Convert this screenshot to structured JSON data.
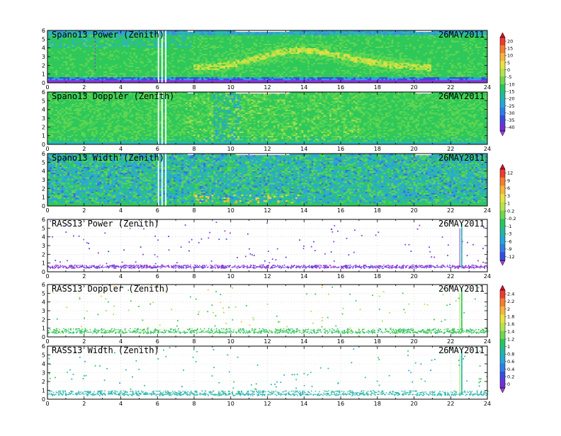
{
  "date_label": "26MAY2011",
  "chart_data": [
    {
      "type": "heatmap",
      "title": "Spano13 Power (Zenith)",
      "date": "26MAY2011",
      "xlim": [
        0,
        24
      ],
      "ylim": [
        0,
        6
      ],
      "xticks": [
        "0",
        "2",
        "4",
        "6",
        "8",
        "10",
        "12",
        "14",
        "16",
        "18",
        "20",
        "22",
        "24"
      ],
      "yticks": [
        "0",
        "1",
        "2",
        "3",
        "4",
        "5",
        "6"
      ],
      "colorbar": "A"
    },
    {
      "type": "heatmap",
      "title": "Spano13 Doppler (Zenith)",
      "date": "26MAY2011",
      "xlim": [
        0,
        24
      ],
      "ylim": [
        0,
        6
      ],
      "xticks": [
        "0",
        "2",
        "4",
        "6",
        "8",
        "10",
        "12",
        "14",
        "16",
        "18",
        "20",
        "22",
        "24"
      ],
      "yticks": [
        "0",
        "1",
        "2",
        "3",
        "4",
        "5",
        "6"
      ],
      "colorbar": "A"
    },
    {
      "type": "heatmap",
      "title": "Spano13 Width (Zenith)",
      "date": "26MAY2011",
      "xlim": [
        0,
        24
      ],
      "ylim": [
        0,
        6
      ],
      "xticks": [
        "0",
        "2",
        "4",
        "6",
        "8",
        "10",
        "12",
        "14",
        "16",
        "18",
        "20",
        "22",
        "24"
      ],
      "yticks": [
        "0",
        "1",
        "2",
        "3",
        "4",
        "5",
        "6"
      ],
      "colorbar": "B"
    },
    {
      "type": "scatter",
      "title": "RASS13 Power (Zenith)",
      "date": "26MAY2011",
      "xlim": [
        0,
        24
      ],
      "ylim": [
        0,
        6
      ],
      "xticks": [
        "0",
        "2",
        "4",
        "6",
        "8",
        "10",
        "12",
        "14",
        "16",
        "18",
        "20",
        "22",
        "24"
      ],
      "yticks": [
        "0",
        "1",
        "2",
        "3",
        "4",
        "5",
        "6"
      ],
      "colorbar": "B"
    },
    {
      "type": "scatter",
      "title": "RASS13 Doppler (Zenith)",
      "date": "26MAY2011",
      "xlim": [
        0,
        24
      ],
      "ylim": [
        0,
        6
      ],
      "xticks": [
        "0",
        "2",
        "4",
        "6",
        "8",
        "10",
        "12",
        "14",
        "16",
        "18",
        "20",
        "22",
        "24"
      ],
      "yticks": [
        "0",
        "1",
        "2",
        "3",
        "4",
        "5",
        "6"
      ],
      "colorbar": "C"
    },
    {
      "type": "scatter",
      "title": "RASS13 Width (Zenith)",
      "date": "26MAY2011",
      "xlim": [
        0,
        24
      ],
      "ylim": [
        0,
        6
      ],
      "xticks": [
        "0",
        "2",
        "4",
        "6",
        "8",
        "10",
        "12",
        "14",
        "16",
        "18",
        "20",
        "22",
        "24"
      ],
      "yticks": [
        "0",
        "1",
        "2",
        "3",
        "4",
        "5",
        "6"
      ],
      "colorbar": "C"
    }
  ],
  "colorbars": [
    {
      "id": "A",
      "labels": [
        "20",
        "15",
        "10",
        "5",
        "0",
        "-5",
        "-10",
        "-15",
        "-20",
        "-25",
        "-30",
        "-35",
        "-40"
      ],
      "colors": [
        "#d8003c",
        "#ee3c2c",
        "#f87d2a",
        "#f8b43c",
        "#e8e23e",
        "#b6e24a",
        "#6fd84e",
        "#26c65e",
        "#22b89e",
        "#25a6d8",
        "#2f7ee6",
        "#3a4ce0",
        "#7030d8",
        "#a83ad6"
      ]
    },
    {
      "id": "B",
      "labels": [
        "12",
        "9",
        "6",
        "3",
        "1",
        "0.2",
        "-0.2",
        "-1",
        "-3",
        "-6",
        "-9",
        "-12"
      ],
      "colors": [
        "#d8003c",
        "#ee3c2c",
        "#f87d2a",
        "#f8b43c",
        "#e8e23e",
        "#b6e24a",
        "#6fd84e",
        "#26c65e",
        "#22b89e",
        "#25a6d8",
        "#2f7ee6",
        "#3a4ce0",
        "#a83ad6"
      ]
    },
    {
      "id": "C",
      "labels": [
        "2.4",
        "2.2",
        "2",
        "1.8",
        "1.6",
        "1.4",
        "1.2",
        "1",
        "0.8",
        "0.6",
        "0.4",
        "0.2",
        "0"
      ],
      "colors": [
        "#d8003c",
        "#ee3c2c",
        "#f87d2a",
        "#f8b43c",
        "#e8e23e",
        "#b6e24a",
        "#6fd84e",
        "#26c65e",
        "#22b89e",
        "#25a6d8",
        "#2f7ee6",
        "#3a4ce0",
        "#7030d8",
        "#a83ad6"
      ]
    }
  ]
}
